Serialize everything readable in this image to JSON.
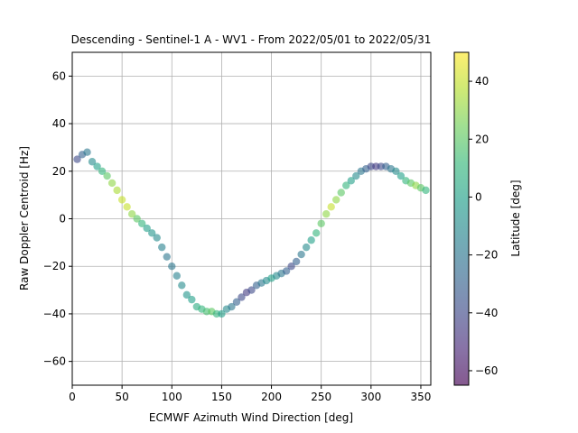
{
  "chart_data": {
    "type": "scatter",
    "title": "Descending - Sentinel-1 A - WV1 - From 2022/05/01 to 2022/05/31",
    "xlabel": "ECMWF Azimuth Wind Direction [deg]",
    "ylabel": "Raw Doppler Centroid [Hz]",
    "xlim": [
      0,
      360
    ],
    "ylim": [
      -70,
      70
    ],
    "xticks": [
      0,
      50,
      100,
      150,
      200,
      250,
      300,
      350
    ],
    "yticks": [
      -60,
      -40,
      -20,
      0,
      20,
      40,
      60
    ],
    "grid": true,
    "colorbar": {
      "label": "Latitude [deg]",
      "range": [
        -65,
        50
      ],
      "ticks": [
        -60,
        -40,
        -20,
        0,
        20,
        40
      ],
      "colormap": "viridis"
    },
    "x": [
      5,
      10,
      15,
      20,
      25,
      30,
      35,
      40,
      45,
      50,
      55,
      60,
      65,
      70,
      75,
      80,
      85,
      90,
      95,
      100,
      105,
      110,
      115,
      120,
      125,
      130,
      135,
      140,
      145,
      150,
      155,
      160,
      165,
      170,
      175,
      180,
      185,
      190,
      195,
      200,
      205,
      210,
      215,
      220,
      225,
      230,
      235,
      240,
      245,
      250,
      255,
      260,
      265,
      270,
      275,
      280,
      285,
      290,
      295,
      300,
      305,
      310,
      315,
      320,
      325,
      330,
      335,
      340,
      345,
      350,
      355
    ],
    "y": [
      25,
      27,
      28,
      24,
      22,
      20,
      18,
      15,
      12,
      8,
      5,
      2,
      0,
      -2,
      -4,
      -6,
      -8,
      -12,
      -16,
      -20,
      -24,
      -28,
      -32,
      -34,
      -37,
      -38,
      -39,
      -39,
      -40,
      -40,
      -38,
      -37,
      -35,
      -33,
      -31,
      -30,
      -28,
      -27,
      -26,
      -25,
      -24,
      -23,
      -22,
      -20,
      -18,
      -15,
      -12,
      -9,
      -6,
      -2,
      2,
      5,
      8,
      11,
      14,
      16,
      18,
      20,
      21,
      22,
      22,
      22,
      22,
      21,
      20,
      18,
      16,
      15,
      14,
      13,
      12
    ],
    "latitude": [
      -40,
      -30,
      -20,
      -10,
      0,
      10,
      20,
      30,
      35,
      40,
      40,
      30,
      20,
      10,
      0,
      -5,
      -10,
      -15,
      -20,
      -20,
      -15,
      -10,
      -5,
      0,
      5,
      10,
      15,
      20,
      10,
      0,
      -10,
      -20,
      -30,
      -40,
      -45,
      -40,
      -30,
      -20,
      -10,
      0,
      -10,
      -20,
      -30,
      -40,
      -30,
      -20,
      -10,
      0,
      10,
      20,
      30,
      40,
      30,
      20,
      10,
      0,
      -10,
      -20,
      -30,
      -40,
      -45,
      -40,
      -30,
      -20,
      -10,
      0,
      10,
      20,
      30,
      20,
      10
    ]
  }
}
